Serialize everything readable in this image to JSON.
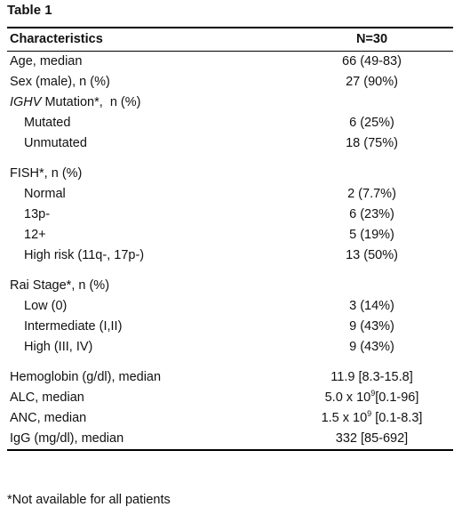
{
  "title": "Table 1",
  "header": {
    "col1": "Characteristics",
    "col2": "N=30"
  },
  "rows": {
    "age": {
      "label": "Age, median",
      "value": "66 (49-83)"
    },
    "sex": {
      "label": "Sex (male), n (%)",
      "value": "27 (90%)"
    },
    "ighv": {
      "label_italic": "IGHV",
      "label_rest": " Mutation*,  n (%)"
    },
    "mutated": {
      "label": "Mutated",
      "value": "6 (25%)"
    },
    "unmutated": {
      "label": "Unmutated",
      "value": "18 (75%)"
    },
    "fish": {
      "label": "FISH*, n (%)"
    },
    "normal": {
      "label": "Normal",
      "value": "2 (7.7%)"
    },
    "p13": {
      "label": "13p-",
      "value": "6 (23%)"
    },
    "p12": {
      "label": "12+",
      "value": "5 (19%)"
    },
    "highrisk": {
      "label": "High risk (11q-, 17p-)",
      "value": "13 (50%)"
    },
    "rai": {
      "label": "Rai Stage*, n (%)"
    },
    "low": {
      "label": "Low (0)",
      "value": "3 (14%)"
    },
    "intermediate": {
      "label": "Intermediate (I,II)",
      "value": "9 (43%)"
    },
    "high": {
      "label": "High (III, IV)",
      "value": "9 (43%)"
    },
    "hgb": {
      "label": "Hemoglobin (g/dl), median",
      "value": "11.9 [8.3-15.8]"
    },
    "alc": {
      "label": "ALC, median",
      "value_pre": "5.0 x 10",
      "value_sup": "9",
      "value_post": "[0.1-96]"
    },
    "anc": {
      "label": "ANC, median",
      "value_pre": "1.5 x 10",
      "value_sup": "9",
      "value_post": " [0.1-8.3]"
    },
    "igg": {
      "label": "IgG (mg/dl), median",
      "value": "332 [85-692]"
    }
  },
  "footnote": "*Not available for all patients"
}
